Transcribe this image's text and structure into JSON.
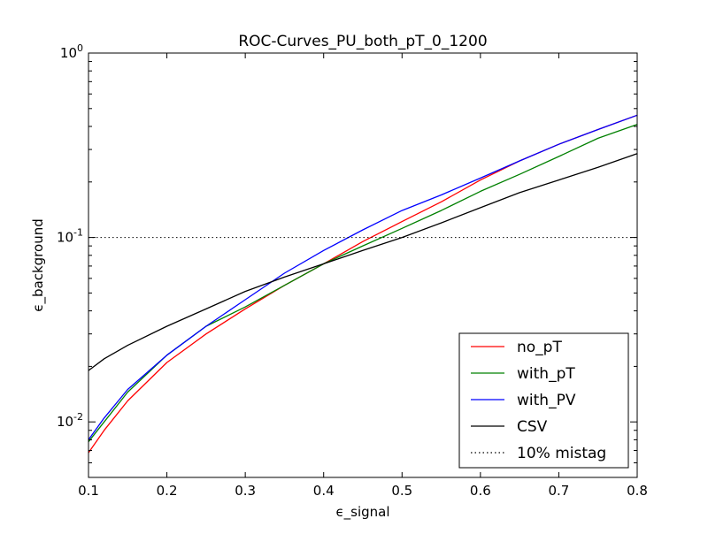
{
  "chart_data": {
    "type": "line",
    "title": "ROC-Curves_PU_both_pT_0_1200",
    "xlabel": "ϵ_signal",
    "ylabel": "ϵ_background",
    "xlim": [
      0.1,
      0.8
    ],
    "ylim": [
      0.005,
      1.0
    ],
    "yscale": "log",
    "grid": false,
    "legend_position": "lower right",
    "xticks": [
      0.1,
      0.2,
      0.3,
      0.4,
      0.5,
      0.6,
      0.7,
      0.8
    ],
    "xtick_labels": [
      "0.1",
      "0.2",
      "0.3",
      "0.4",
      "0.5",
      "0.6",
      "0.7",
      "0.8"
    ],
    "yticks": [
      {
        "value": 1.0,
        "base": "10",
        "exp": "0"
      },
      {
        "value": 0.1,
        "base": "10",
        "exp": "-1"
      },
      {
        "value": 0.01,
        "base": "10",
        "exp": "-2"
      }
    ],
    "series": [
      {
        "name": "no_pT",
        "color": "#ff0000",
        "x": [
          0.1,
          0.12,
          0.15,
          0.2,
          0.25,
          0.3,
          0.35,
          0.4,
          0.45,
          0.5,
          0.55,
          0.6,
          0.65,
          0.7,
          0.75,
          0.8
        ],
        "y": [
          0.0068,
          0.009,
          0.013,
          0.021,
          0.03,
          0.041,
          0.055,
          0.072,
          0.095,
          0.122,
          0.156,
          0.205,
          0.26,
          0.32,
          0.385,
          0.46
        ]
      },
      {
        "name": "with_pT",
        "color": "#008000",
        "x": [
          0.1,
          0.12,
          0.15,
          0.2,
          0.25,
          0.3,
          0.35,
          0.4,
          0.45,
          0.5,
          0.55,
          0.6,
          0.65,
          0.7,
          0.75,
          0.8
        ],
        "y": [
          0.0078,
          0.01,
          0.0145,
          0.023,
          0.033,
          0.042,
          0.055,
          0.072,
          0.09,
          0.112,
          0.14,
          0.178,
          0.22,
          0.275,
          0.345,
          0.41
        ]
      },
      {
        "name": "with_PV",
        "color": "#0000ff",
        "x": [
          0.1,
          0.12,
          0.15,
          0.2,
          0.25,
          0.3,
          0.35,
          0.4,
          0.45,
          0.5,
          0.55,
          0.6,
          0.65,
          0.7,
          0.75,
          0.8
        ],
        "y": [
          0.008,
          0.0105,
          0.015,
          0.023,
          0.033,
          0.046,
          0.064,
          0.085,
          0.11,
          0.14,
          0.17,
          0.21,
          0.26,
          0.32,
          0.385,
          0.46
        ]
      },
      {
        "name": "CSV",
        "color": "#000000",
        "x": [
          0.1,
          0.12,
          0.15,
          0.2,
          0.25,
          0.3,
          0.35,
          0.4,
          0.45,
          0.5,
          0.55,
          0.6,
          0.65,
          0.7,
          0.75,
          0.8
        ],
        "y": [
          0.019,
          0.022,
          0.026,
          0.033,
          0.041,
          0.051,
          0.061,
          0.072,
          0.085,
          0.1,
          0.12,
          0.145,
          0.175,
          0.205,
          0.24,
          0.285
        ]
      }
    ],
    "reference_line": {
      "name": "10% mistag",
      "y": 0.1,
      "color": "#000000",
      "style": "dotted"
    },
    "legend": [
      "no_pT",
      "with_pT",
      "with_PV",
      "CSV",
      "10% mistag"
    ]
  }
}
